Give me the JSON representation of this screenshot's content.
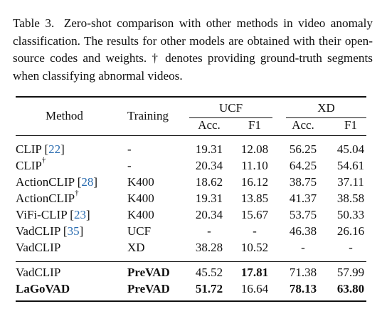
{
  "caption": {
    "label": "Table 3.",
    "text": "Zero-shot comparison with other methods in video anomaly classification. The results for other models are obtained with their open-source codes and weights. † denotes providing ground-truth segments when classifying abnormal videos."
  },
  "header": {
    "method": "Method",
    "training": "Training",
    "group1": "UCF",
    "group2": "XD",
    "acc": "Acc.",
    "f1": "F1"
  },
  "rows": [
    {
      "method": "CLIP",
      "cite": "22",
      "dagger": "",
      "training": "-",
      "ucf_acc": "19.31",
      "ucf_f1": "12.08",
      "xd_acc": "56.25",
      "xd_f1": "45.04"
    },
    {
      "method": "CLIP",
      "cite": "",
      "dagger": "†",
      "training": "-",
      "ucf_acc": "20.34",
      "ucf_f1": "11.10",
      "xd_acc": "64.25",
      "xd_f1": "54.61"
    },
    {
      "method": "ActionCLIP",
      "cite": "28",
      "dagger": "",
      "training": "K400",
      "ucf_acc": "18.62",
      "ucf_f1": "16.12",
      "xd_acc": "38.75",
      "xd_f1": "37.11"
    },
    {
      "method": "ActionCLIP",
      "cite": "",
      "dagger": "†",
      "training": "K400",
      "ucf_acc": "19.31",
      "ucf_f1": "13.85",
      "xd_acc": "41.37",
      "xd_f1": "38.58"
    },
    {
      "method": "ViFi-CLIP",
      "cite": "23",
      "dagger": "",
      "training": "K400",
      "ucf_acc": "20.34",
      "ucf_f1": "15.67",
      "xd_acc": "53.75",
      "xd_f1": "50.33"
    },
    {
      "method": "VadCLIP",
      "cite": "35",
      "dagger": "",
      "training": "UCF",
      "ucf_acc": "-",
      "ucf_f1": "-",
      "xd_acc": "46.38",
      "xd_f1": "26.16"
    },
    {
      "method": "VadCLIP",
      "cite": "",
      "dagger": "",
      "training": "XD",
      "ucf_acc": "38.28",
      "ucf_f1": "10.52",
      "xd_acc": "-",
      "xd_f1": "-"
    },
    {
      "method": "VadCLIP",
      "cite": "",
      "dagger": "",
      "training": "PreVAD",
      "ucf_acc": "45.52",
      "ucf_f1": "17.81",
      "xd_acc": "71.38",
      "xd_f1": "57.99"
    },
    {
      "method": "LaGoVAD",
      "cite": "",
      "dagger": "",
      "training": "PreVAD",
      "ucf_acc": "51.72",
      "ucf_f1": "16.64",
      "xd_acc": "78.13",
      "xd_f1": "63.80"
    }
  ]
}
